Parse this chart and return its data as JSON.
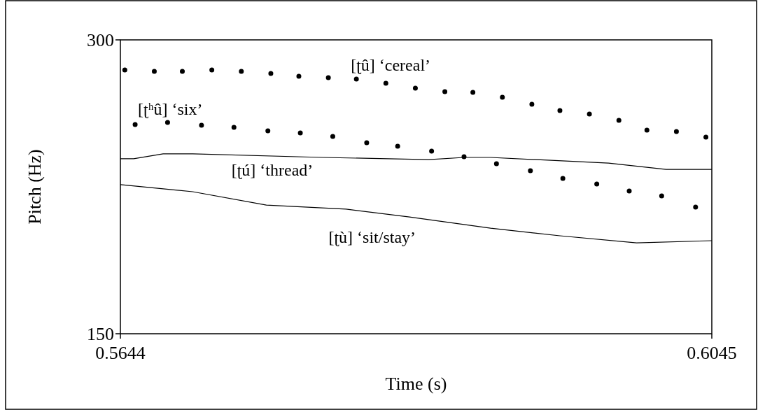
{
  "chart_data": {
    "type": "line",
    "xlabel": "Time (s)",
    "ylabel": "Pitch (Hz)",
    "xlim": [
      0.5644,
      0.6045
    ],
    "xticks": [
      0.5644,
      0.6045
    ],
    "ylim": [
      150,
      300
    ],
    "yticks": [
      150,
      300
    ],
    "grid": false,
    "series": [
      {
        "name": "[ʈû] ‘cereal’",
        "type": "scatter",
        "marker": "circle",
        "color": "#000000",
        "x": [
          0.5647,
          0.5667,
          0.5686,
          0.5706,
          0.5726,
          0.5746,
          0.5765,
          0.5785,
          0.5804,
          0.5824,
          0.5844,
          0.5864,
          0.5883,
          0.5903,
          0.5923,
          0.5942,
          0.5962,
          0.5982,
          0.6001,
          0.6021,
          0.6041
        ],
        "values": [
          284.6,
          283.9,
          283.9,
          284.6,
          283.9,
          282.9,
          281.4,
          280.7,
          280.0,
          277.9,
          275.4,
          273.6,
          273.2,
          270.7,
          267.1,
          263.9,
          262.1,
          258.9,
          253.9,
          253.2,
          250.4
        ]
      },
      {
        "name": "[ʈʰû] ‘six’",
        "type": "scatter",
        "marker": "circle",
        "color": "#000000",
        "x": [
          0.5654,
          0.5676,
          0.5699,
          0.5721,
          0.5744,
          0.5766,
          0.5788,
          0.5811,
          0.5832,
          0.5855,
          0.5877,
          0.5899,
          0.5922,
          0.5944,
          0.5967,
          0.5989,
          0.6011,
          0.6034
        ],
        "values": [
          256.8,
          257.9,
          256.4,
          255.4,
          253.6,
          252.5,
          250.7,
          247.5,
          245.7,
          243.2,
          240.4,
          236.8,
          233.2,
          229.3,
          226.4,
          222.9,
          220.4,
          214.6
        ]
      },
      {
        "name": "[ʈú] ‘thread’",
        "color": "#000000",
        "x": [
          0.5644,
          0.5653,
          0.5673,
          0.5693,
          0.5781,
          0.5853,
          0.5877,
          0.5895,
          0.5975,
          0.6014,
          0.6045
        ],
        "values": [
          239.3,
          239.3,
          241.8,
          241.8,
          240.0,
          238.9,
          240.0,
          240.0,
          237.1,
          233.9,
          233.9
        ]
      },
      {
        "name": "[ʈù] ‘sit/stay’",
        "color": "#000000",
        "x": [
          0.5644,
          0.5693,
          0.5743,
          0.5797,
          0.584,
          0.5895,
          0.5942,
          0.5994,
          0.6045
        ],
        "values": [
          226.1,
          222.5,
          215.7,
          213.6,
          209.6,
          203.9,
          200.0,
          196.4,
          197.5
        ]
      }
    ]
  }
}
